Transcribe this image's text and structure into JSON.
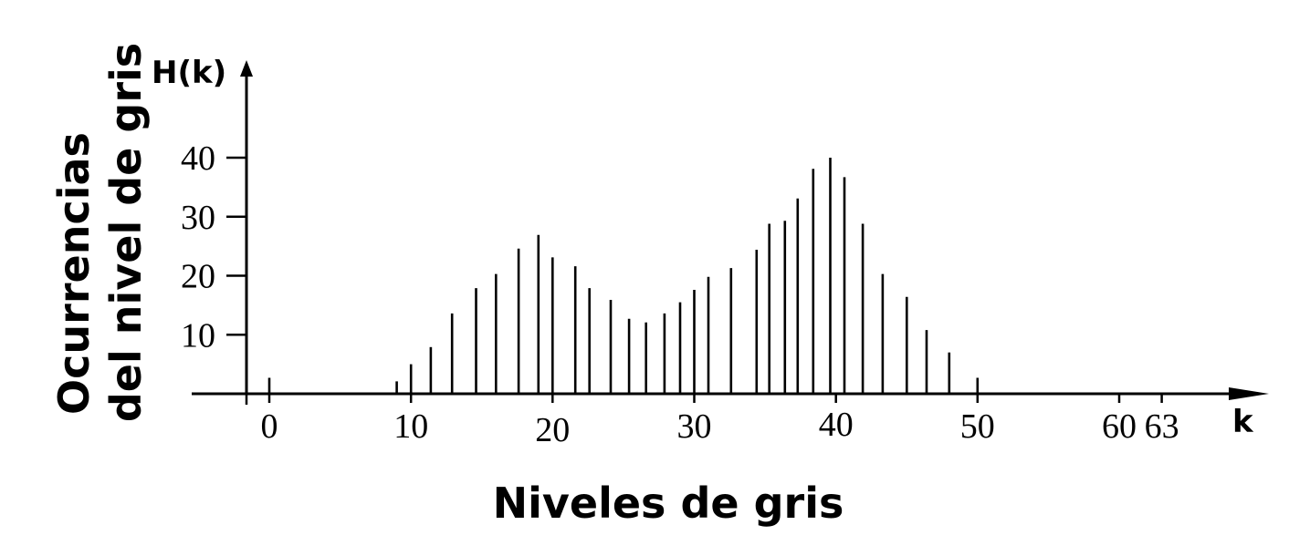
{
  "chart_data": {
    "type": "bar",
    "style": "stem",
    "y_axis_symbol": "H(k)",
    "x_axis_symbol": "k",
    "xlabel": "Niveles de gris",
    "ylabel_lines": [
      "Ocurrencias",
      "del nivel de gris"
    ],
    "x_ticks": [
      0,
      10,
      20,
      30,
      40,
      50,
      60,
      63
    ],
    "y_ticks": [
      10,
      20,
      30,
      40
    ],
    "xlim": [
      -1.6,
      66
    ],
    "ylim": [
      0,
      46
    ],
    "grid": false,
    "legend": "none",
    "points": [
      {
        "x": 0,
        "y": 2.7
      },
      {
        "x": 9,
        "y": 2.1
      },
      {
        "x": 10,
        "y": 5.0
      },
      {
        "x": 11.4,
        "y": 7.9
      },
      {
        "x": 12.9,
        "y": 13.6
      },
      {
        "x": 14.6,
        "y": 17.9
      },
      {
        "x": 16,
        "y": 20.3
      },
      {
        "x": 17.6,
        "y": 24.6
      },
      {
        "x": 19,
        "y": 26.9
      },
      {
        "x": 20,
        "y": 23.1
      },
      {
        "x": 21.6,
        "y": 21.6
      },
      {
        "x": 22.6,
        "y": 17.9
      },
      {
        "x": 24.1,
        "y": 15.9
      },
      {
        "x": 25.4,
        "y": 12.7
      },
      {
        "x": 26.6,
        "y": 12.1
      },
      {
        "x": 27.9,
        "y": 13.6
      },
      {
        "x": 29,
        "y": 15.5
      },
      {
        "x": 30,
        "y": 17.6
      },
      {
        "x": 31,
        "y": 19.8
      },
      {
        "x": 32.6,
        "y": 21.3
      },
      {
        "x": 34.4,
        "y": 24.4
      },
      {
        "x": 35.3,
        "y": 28.8
      },
      {
        "x": 36.4,
        "y": 29.3
      },
      {
        "x": 37.3,
        "y": 33.1
      },
      {
        "x": 38.4,
        "y": 38.1
      },
      {
        "x": 39.6,
        "y": 40.0
      },
      {
        "x": 40.6,
        "y": 36.7
      },
      {
        "x": 41.9,
        "y": 28.8
      },
      {
        "x": 43.3,
        "y": 20.3
      },
      {
        "x": 45,
        "y": 16.4
      },
      {
        "x": 46.4,
        "y": 10.8
      },
      {
        "x": 48,
        "y": 7.0
      },
      {
        "x": 50,
        "y": 2.7
      }
    ]
  }
}
